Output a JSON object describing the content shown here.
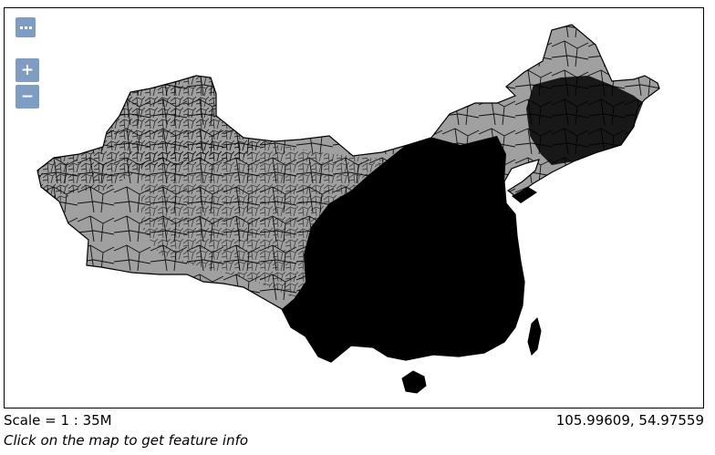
{
  "map": {
    "scale_label": "Scale = 1 : 35M",
    "mouse_position": "105.99609, 54.97559",
    "info_text": "Click on the map to get feature info",
    "fill_color": "#a0a0a0",
    "dense_color": "#000000",
    "stroke_color": "#000000"
  },
  "controls": {
    "layer_switcher_icon": "ellipsis-icon",
    "zoom_in_label": "+",
    "zoom_out_label": "−"
  }
}
